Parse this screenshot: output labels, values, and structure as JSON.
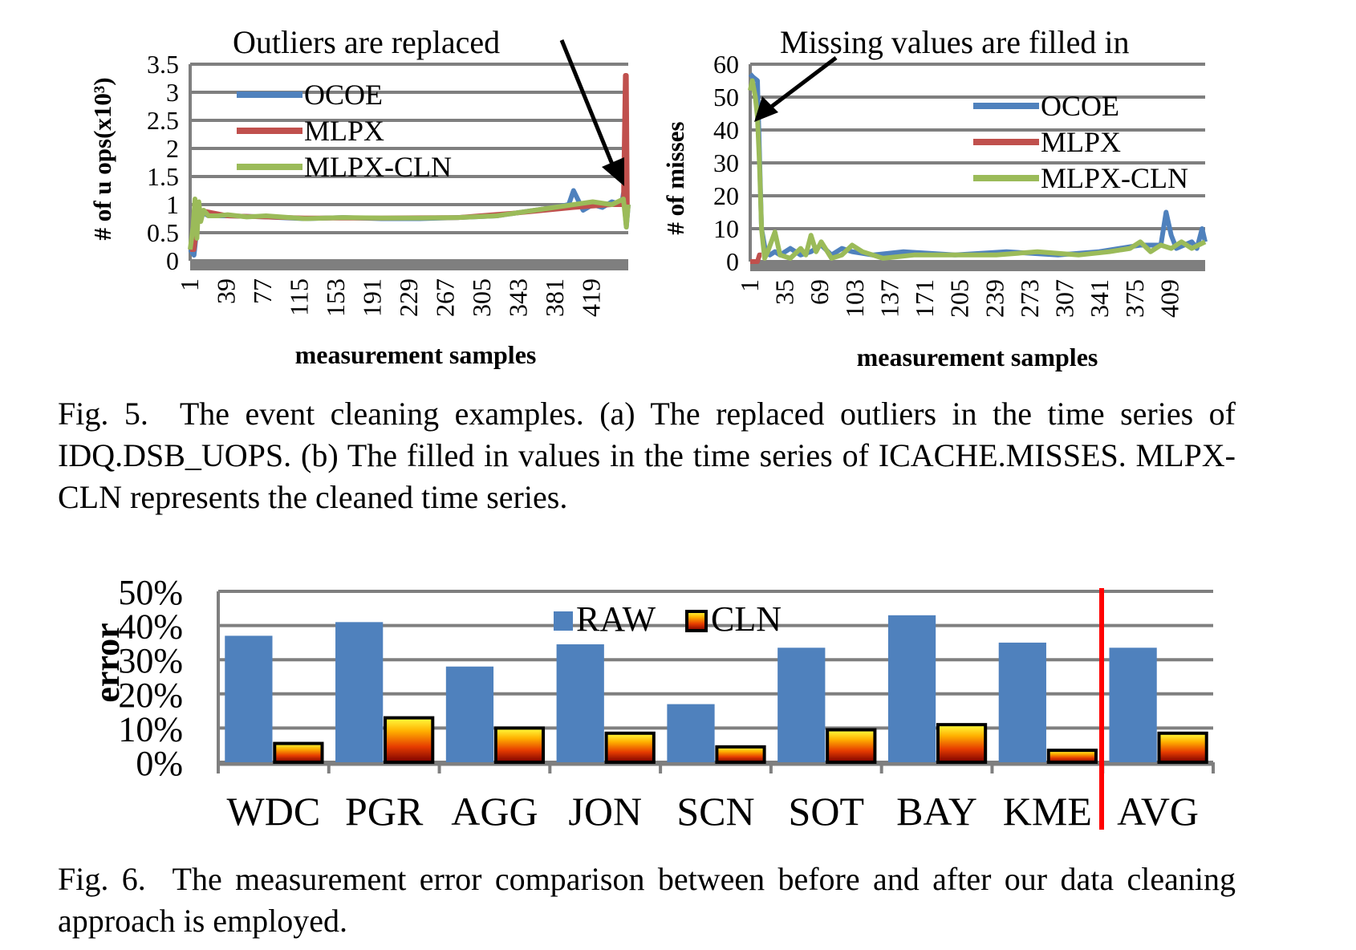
{
  "fig5a": {
    "annotation": "Outliers are replaced",
    "ylabel": "# of u ops(x10³)",
    "xlabel": "measurement samples",
    "yticks": [
      "0",
      "0.5",
      "1",
      "1.5",
      "2",
      "2.5",
      "3",
      "3.5"
    ],
    "xticks": [
      "1",
      "39",
      "77",
      "115",
      "153",
      "191",
      "229",
      "267",
      "305",
      "343",
      "381",
      "419"
    ],
    "legend": [
      "OCOE",
      "MLPX",
      "MLPX-CLN"
    ]
  },
  "fig5b": {
    "annotation": "Missing values are filled in",
    "ylabel": "# of misses",
    "xlabel": "measurement samples",
    "yticks": [
      "0",
      "10",
      "20",
      "30",
      "40",
      "50",
      "60"
    ],
    "xticks": [
      "1",
      "35",
      "69",
      "103",
      "137",
      "171",
      "205",
      "239",
      "273",
      "307",
      "341",
      "375",
      "409"
    ],
    "legend": [
      "OCOE",
      "MLPX",
      "MLPX-CLN"
    ]
  },
  "fig6": {
    "ylabel": "error",
    "yticks": [
      "0%",
      "10%",
      "20%",
      "30%",
      "40%",
      "50%"
    ],
    "legend": [
      "RAW",
      "CLN"
    ]
  },
  "captions": {
    "fig5": "Fig. 5.  The event cleaning examples. (a) The replaced outliers in the time series of IDQ.DSB_UOPS. (b) The filled in values in the time series of ICACHE.MISSES. MLPX-CLN represents the cleaned time series.",
    "fig6": "Fig. 6.  The measurement error comparison between before and after our data cleaning approach is employed."
  },
  "colors": {
    "ocoe": "#4F81BD",
    "mlpx": "#C0504D",
    "cln": "#9BBB59",
    "raw": "#4F81BD",
    "divider": "#FF0000",
    "grid": "#7F7F7F"
  },
  "chart_data": [
    {
      "type": "line",
      "xlabel": "measurement samples",
      "ylabel": "# of u ops(x10³)",
      "ylim": [
        0,
        3.5
      ],
      "xlim": [
        1,
        457
      ],
      "series": [
        {
          "name": "OCOE",
          "x": [
            1,
            5,
            10,
            15,
            20,
            40,
            80,
            120,
            160,
            200,
            240,
            280,
            320,
            340,
            360,
            380,
            395,
            400,
            410,
            420,
            430,
            440,
            450,
            452,
            455,
            457
          ],
          "y": [
            0.2,
            0.1,
            0.9,
            0.85,
            0.8,
            0.8,
            0.78,
            0.75,
            0.77,
            0.75,
            0.75,
            0.77,
            0.8,
            0.85,
            0.9,
            0.95,
            1.0,
            1.25,
            0.9,
            1.0,
            0.95,
            1.05,
            1.0,
            1.2,
            0.6,
            1.0
          ]
        },
        {
          "name": "MLPX",
          "x": [
            1,
            5,
            10,
            40,
            120,
            200,
            280,
            340,
            400,
            440,
            452,
            454,
            455,
            456,
            457
          ],
          "y": [
            0.2,
            0.2,
            0.9,
            0.8,
            0.76,
            0.76,
            0.77,
            0.85,
            0.95,
            1.0,
            1.0,
            3.3,
            3.3,
            1.0,
            1.0
          ]
        },
        {
          "name": "MLPX-CLN",
          "x": [
            1,
            4,
            6,
            8,
            10,
            12,
            15,
            20,
            30,
            40,
            60,
            80,
            120,
            160,
            200,
            240,
            280,
            320,
            340,
            360,
            380,
            400,
            420,
            440,
            452,
            455,
            457
          ],
          "y": [
            0.2,
            0.6,
            1.1,
            0.4,
            1.05,
            0.7,
            0.9,
            0.8,
            0.8,
            0.82,
            0.78,
            0.8,
            0.75,
            0.77,
            0.76,
            0.76,
            0.77,
            0.8,
            0.85,
            0.9,
            0.95,
            1.0,
            1.05,
            1.0,
            1.1,
            0.6,
            1.0
          ]
        }
      ]
    },
    {
      "type": "line",
      "xlabel": "measurement samples",
      "ylabel": "# of misses",
      "ylim": [
        0,
        60
      ],
      "xlim": [
        1,
        443
      ],
      "series": [
        {
          "name": "OCOE",
          "x": [
            1,
            4,
            8,
            12,
            16,
            20,
            25,
            30,
            40,
            50,
            60,
            70,
            80,
            90,
            100,
            120,
            150,
            200,
            250,
            300,
            340,
            360,
            380,
            400,
            405,
            410,
            415,
            430,
            435,
            440,
            443
          ],
          "y": [
            57,
            56,
            55,
            10,
            3,
            2,
            3,
            2,
            4,
            2,
            3,
            5,
            2,
            4,
            3,
            2,
            3,
            2,
            3,
            2,
            3,
            4,
            5,
            5,
            15,
            8,
            4,
            6,
            4,
            10,
            6
          ]
        },
        {
          "name": "MLPX",
          "x": [
            1,
            8,
            10,
            12
          ],
          "y": [
            0,
            0,
            2,
            2
          ]
        },
        {
          "name": "MLPX-CLN",
          "x": [
            1,
            3,
            6,
            8,
            10,
            12,
            15,
            18,
            25,
            30,
            40,
            50,
            55,
            60,
            65,
            70,
            80,
            90,
            100,
            110,
            130,
            160,
            200,
            240,
            280,
            320,
            350,
            370,
            380,
            390,
            400,
            410,
            420,
            430,
            443
          ],
          "y": [
            52,
            55,
            50,
            44,
            30,
            10,
            1,
            3,
            9,
            2,
            1,
            4,
            2,
            8,
            3,
            6,
            1,
            2,
            5,
            3,
            1,
            2,
            2,
            2,
            3,
            2,
            3,
            4,
            6,
            3,
            5,
            4,
            6,
            4,
            6
          ]
        }
      ]
    },
    {
      "type": "bar",
      "ylabel": "error",
      "ylim": [
        0,
        0.5
      ],
      "categories": [
        "WDC",
        "PGR",
        "AGG",
        "JON",
        "SCN",
        "SOT",
        "BAY",
        "KME",
        "AVG"
      ],
      "series": [
        {
          "name": "RAW",
          "values": [
            0.37,
            0.41,
            0.28,
            0.345,
            0.17,
            0.335,
            0.43,
            0.35,
            0.335
          ]
        },
        {
          "name": "CLN",
          "values": [
            0.055,
            0.13,
            0.1,
            0.085,
            0.045,
            0.095,
            0.11,
            0.035,
            0.085
          ]
        }
      ]
    }
  ]
}
